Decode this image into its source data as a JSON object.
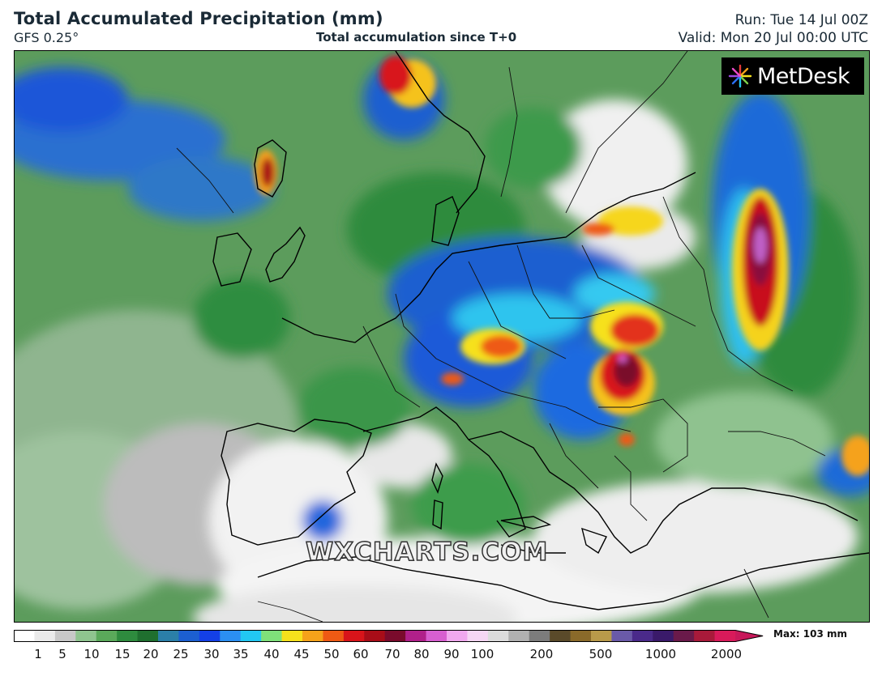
{
  "header": {
    "title": "Total Accumulated Precipitation (mm)",
    "model": "GFS 0.25°",
    "subtitle": "Total accumulation since T+0",
    "run": "Run: Tue 14 Jul 00Z",
    "valid": "Valid: Mon 20 Jul 00:00 UTC"
  },
  "brand": {
    "name": "MetDesk",
    "icon": "metdesk-burst-icon"
  },
  "watermark": "WXCHARTS.COM",
  "legend": {
    "max_label": "Max: 103 mm",
    "ticks": [
      "1",
      "5",
      "10",
      "15",
      "20",
      "25",
      "30",
      "35",
      "40",
      "45",
      "50",
      "60",
      "70",
      "80",
      "90",
      "100",
      "200",
      "500",
      "1000",
      "2000"
    ],
    "colors": [
      "#ffffff",
      "#eaeaea",
      "#c8c8c8",
      "#8fc48f",
      "#5aa95a",
      "#2e8b3e",
      "#1f6f2f",
      "#2b7fa8",
      "#1c5fd0",
      "#1440e6",
      "#2b8ff2",
      "#22c7f2",
      "#7fe07a",
      "#f6e11c",
      "#f5a21a",
      "#ee5a14",
      "#d8141a",
      "#a80d18",
      "#7a0b2c",
      "#b0208a",
      "#d75fd0",
      "#f0a8ee",
      "#f5d6f3",
      "#dcdcdc",
      "#b0b0b0",
      "#7c7c7c",
      "#5a4a2a",
      "#8a6a2a",
      "#b89a4a",
      "#6a5aa8",
      "#4a2a8a",
      "#3a1a6a",
      "#6a1a4a",
      "#a81a3a",
      "#d81a5a"
    ]
  }
}
